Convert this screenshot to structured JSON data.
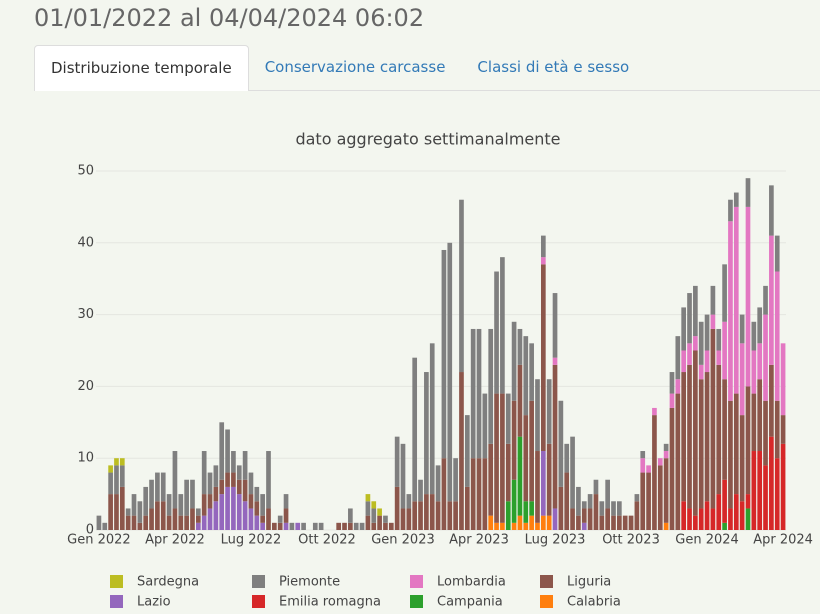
{
  "header": {
    "title": "01/01/2022 al 04/04/2024 06:02"
  },
  "tabs": [
    "Distribuzione temporale",
    "Conservazione carcasse",
    "Classi di età e sesso"
  ],
  "chart_data": {
    "type": "bar",
    "stacked": true,
    "title": "dato aggregato settimanalmente",
    "categories": [
      "Gen 2022",
      null,
      null,
      null,
      null,
      null,
      null,
      null,
      null,
      null,
      null,
      null,
      null,
      "Apr 2022",
      null,
      null,
      null,
      null,
      null,
      null,
      null,
      null,
      null,
      null,
      null,
      null,
      "Lug 2022",
      null,
      null,
      null,
      null,
      null,
      null,
      null,
      null,
      null,
      null,
      null,
      null,
      "Ott 2022",
      null,
      null,
      null,
      null,
      null,
      null,
      null,
      null,
      null,
      null,
      null,
      null,
      "Gen 2023",
      null,
      null,
      null,
      null,
      null,
      null,
      null,
      null,
      null,
      null,
      null,
      null,
      "Apr 2023",
      null,
      null,
      null,
      null,
      null,
      null,
      null,
      null,
      null,
      null,
      null,
      null,
      "Lug 2023",
      null,
      null,
      null,
      null,
      null,
      null,
      null,
      null,
      null,
      null,
      null,
      null,
      "Ott 2023",
      null,
      null,
      null,
      null,
      null,
      null,
      null,
      null,
      null,
      null,
      null,
      null,
      "Gen 2024",
      null,
      null,
      null,
      null,
      null,
      null,
      null,
      null,
      null,
      null,
      null,
      null,
      "Apr 2024"
    ],
    "ylim": [
      0,
      50
    ],
    "yticks": [
      0,
      10,
      20,
      30,
      40,
      50
    ],
    "grid": true,
    "series": [
      {
        "name": "Calabria",
        "color": "#ff7f0e",
        "values": [
          0,
          0,
          0,
          0,
          0,
          0,
          0,
          0,
          0,
          0,
          0,
          0,
          0,
          0,
          0,
          0,
          0,
          0,
          0,
          0,
          0,
          0,
          0,
          0,
          0,
          0,
          0,
          0,
          0,
          0,
          0,
          0,
          0,
          0,
          0,
          0,
          0,
          0,
          0,
          0,
          0,
          0,
          0,
          0,
          0,
          0,
          0,
          0,
          0,
          0,
          0,
          0,
          0,
          0,
          0,
          0,
          0,
          0,
          0,
          0,
          0,
          0,
          0,
          0,
          0,
          0,
          0,
          2,
          1,
          1,
          0,
          1,
          2,
          1,
          2,
          1,
          2,
          2,
          0,
          0,
          0,
          0,
          0,
          0,
          0,
          0,
          0,
          0,
          0,
          0,
          0,
          0,
          0,
          0,
          0,
          0,
          0,
          1,
          0,
          0,
          0,
          0,
          0,
          0,
          0,
          0,
          0,
          0,
          0,
          0,
          0,
          0,
          0,
          0,
          0,
          0,
          0,
          0
        ]
      },
      {
        "name": "Campania",
        "color": "#2ca02c",
        "values": [
          0,
          0,
          0,
          0,
          0,
          0,
          0,
          0,
          0,
          0,
          0,
          0,
          0,
          0,
          0,
          0,
          0,
          0,
          0,
          0,
          0,
          0,
          0,
          0,
          0,
          0,
          0,
          0,
          0,
          0,
          0,
          0,
          0,
          0,
          0,
          0,
          0,
          0,
          0,
          0,
          0,
          0,
          0,
          0,
          0,
          0,
          0,
          0,
          0,
          0,
          0,
          0,
          0,
          0,
          0,
          0,
          0,
          0,
          0,
          0,
          0,
          0,
          0,
          0,
          0,
          0,
          0,
          0,
          0,
          0,
          4,
          6,
          11,
          3,
          2,
          0,
          0,
          0,
          0,
          0,
          0,
          0,
          0,
          0,
          0,
          0,
          0,
          0,
          0,
          0,
          0,
          0,
          0,
          0,
          0,
          0,
          0,
          0,
          0,
          0,
          0,
          0,
          0,
          0,
          0,
          0,
          0,
          1,
          0,
          0,
          0,
          3,
          0,
          0,
          0,
          0,
          0,
          0
        ]
      },
      {
        "name": "Emilia romagna",
        "color": "#d62728",
        "values": [
          0,
          0,
          0,
          0,
          0,
          0,
          0,
          0,
          0,
          0,
          0,
          0,
          0,
          0,
          0,
          0,
          0,
          0,
          0,
          0,
          0,
          0,
          0,
          0,
          0,
          0,
          0,
          0,
          0,
          0,
          0,
          0,
          0,
          0,
          0,
          0,
          0,
          0,
          0,
          0,
          0,
          0,
          0,
          0,
          0,
          0,
          0,
          0,
          0,
          0,
          0,
          0,
          0,
          0,
          0,
          0,
          0,
          0,
          0,
          0,
          0,
          0,
          0,
          0,
          0,
          0,
          0,
          0,
          0,
          0,
          0,
          0,
          0,
          0,
          0,
          0,
          0,
          0,
          0,
          0,
          0,
          0,
          0,
          0,
          0,
          0,
          0,
          0,
          0,
          0,
          0,
          0,
          0,
          0,
          0,
          0,
          0,
          0,
          0,
          0,
          4,
          3,
          2,
          3,
          4,
          3,
          5,
          6,
          3,
          5,
          4,
          2,
          11,
          11,
          9,
          13,
          10,
          12
        ]
      },
      {
        "name": "Lazio",
        "color": "#9467bd",
        "values": [
          0,
          0,
          0,
          0,
          0,
          0,
          0,
          0,
          0,
          0,
          0,
          0,
          0,
          0,
          0,
          0,
          0,
          1,
          2,
          3,
          4,
          5,
          6,
          6,
          5,
          4,
          3,
          2,
          1,
          0,
          0,
          0,
          1,
          0,
          1,
          0,
          0,
          0,
          0,
          0,
          0,
          0,
          0,
          0,
          0,
          0,
          0,
          0,
          0,
          0,
          0,
          0,
          0,
          0,
          0,
          0,
          0,
          0,
          0,
          0,
          0,
          0,
          0,
          0,
          0,
          0,
          0,
          0,
          0,
          0,
          0,
          0,
          0,
          0,
          0,
          0,
          9,
          0,
          3,
          0,
          0,
          0,
          0,
          1,
          0,
          0,
          0,
          0,
          0,
          0,
          0,
          0,
          0,
          0,
          0,
          0,
          0,
          0,
          0,
          0,
          0,
          0,
          0,
          0,
          0,
          0,
          0,
          0,
          0,
          0,
          0,
          0,
          0,
          0,
          0,
          0,
          0,
          0
        ]
      },
      {
        "name": "Liguria",
        "color": "#8c564b",
        "values": [
          0,
          0,
          5,
          5,
          6,
          2,
          2,
          1,
          2,
          3,
          4,
          4,
          2,
          3,
          2,
          2,
          3,
          1,
          3,
          2,
          2,
          2,
          2,
          2,
          2,
          3,
          2,
          2,
          1,
          3,
          1,
          1,
          2,
          0,
          0,
          0,
          0,
          0,
          0,
          0,
          0,
          1,
          1,
          1,
          0,
          0,
          2,
          1,
          2,
          1,
          1,
          6,
          3,
          3,
          4,
          4,
          5,
          5,
          4,
          10,
          4,
          4,
          22,
          6,
          10,
          10,
          10,
          10,
          18,
          18,
          8,
          11,
          10,
          12,
          14,
          10,
          26,
          10,
          20,
          6,
          8,
          3,
          2,
          2,
          3,
          5,
          2,
          3,
          2,
          2,
          2,
          2,
          4,
          8,
          8,
          16,
          9,
          9,
          17,
          19,
          18,
          20,
          23,
          18,
          18,
          25,
          18,
          14,
          15,
          14,
          12,
          15,
          8,
          10,
          9,
          10,
          8,
          4
        ]
      },
      {
        "name": "Lombardia",
        "color": "#e377c2",
        "values": [
          0,
          0,
          0,
          0,
          0,
          0,
          0,
          0,
          0,
          0,
          0,
          0,
          0,
          0,
          0,
          0,
          0,
          0,
          0,
          0,
          0,
          0,
          0,
          0,
          0,
          0,
          0,
          0,
          0,
          0,
          0,
          0,
          0,
          0,
          0,
          0,
          0,
          0,
          0,
          0,
          0,
          0,
          0,
          0,
          0,
          0,
          0,
          0,
          0,
          0,
          0,
          0,
          0,
          0,
          0,
          0,
          0,
          0,
          0,
          0,
          0,
          0,
          0,
          0,
          0,
          0,
          0,
          0,
          0,
          0,
          0,
          0,
          0,
          0,
          0,
          0,
          1,
          0,
          1,
          0,
          0,
          0,
          0,
          0,
          0,
          0,
          0,
          0,
          0,
          0,
          0,
          0,
          0,
          2,
          1,
          1,
          1,
          1,
          2,
          2,
          3,
          3,
          2,
          2,
          3,
          2,
          2,
          8,
          25,
          26,
          10,
          25,
          6,
          5,
          12,
          18,
          18,
          10
        ]
      },
      {
        "name": "Piemonte",
        "color": "#7f7f7f",
        "values": [
          2,
          1,
          3,
          4,
          3,
          1,
          3,
          3,
          4,
          4,
          4,
          4,
          3,
          8,
          3,
          5,
          4,
          1,
          6,
          3,
          3,
          8,
          6,
          3,
          2,
          4,
          3,
          2,
          3,
          8,
          0,
          1,
          2,
          1,
          0,
          1,
          0,
          1,
          1,
          0,
          0,
          0,
          0,
          2,
          1,
          1,
          2,
          2,
          0,
          1,
          0,
          7,
          9,
          2,
          20,
          3,
          17,
          21,
          5,
          29,
          36,
          6,
          24,
          10,
          18,
          18,
          9,
          16,
          17,
          19,
          7,
          11,
          5,
          11,
          8,
          10,
          3,
          9,
          9,
          12,
          4,
          10,
          4,
          1,
          2,
          2,
          2,
          4,
          2,
          2,
          0,
          0,
          1,
          1,
          0,
          0,
          0,
          1,
          3,
          6,
          6,
          7,
          7,
          6,
          5,
          4,
          3,
          8,
          3,
          2,
          4,
          4,
          4,
          5,
          4,
          7,
          5,
          0
        ]
      },
      {
        "name": "Sardegna",
        "color": "#bcbd22",
        "values": [
          0,
          0,
          1,
          1,
          1,
          0,
          0,
          0,
          0,
          0,
          0,
          0,
          0,
          0,
          0,
          0,
          0,
          0,
          0,
          0,
          0,
          0,
          0,
          0,
          0,
          0,
          0,
          0,
          0,
          0,
          0,
          0,
          0,
          0,
          0,
          0,
          0,
          0,
          0,
          0,
          0,
          0,
          0,
          0,
          0,
          0,
          1,
          1,
          1,
          0,
          0,
          0,
          0,
          0,
          0,
          0,
          0,
          0,
          0,
          0,
          0,
          0,
          0,
          0,
          0,
          0,
          0,
          0,
          0,
          0,
          0,
          0,
          0,
          0,
          0,
          0,
          0,
          0,
          0,
          0,
          0,
          0,
          0,
          0,
          0,
          0,
          0,
          0,
          0,
          0,
          0,
          0,
          0,
          0,
          0,
          0,
          0,
          0,
          0,
          0,
          0,
          0,
          0,
          0,
          0,
          0,
          0,
          0,
          0,
          0,
          0,
          0,
          0,
          0,
          0,
          0,
          0,
          0
        ]
      }
    ]
  }
}
